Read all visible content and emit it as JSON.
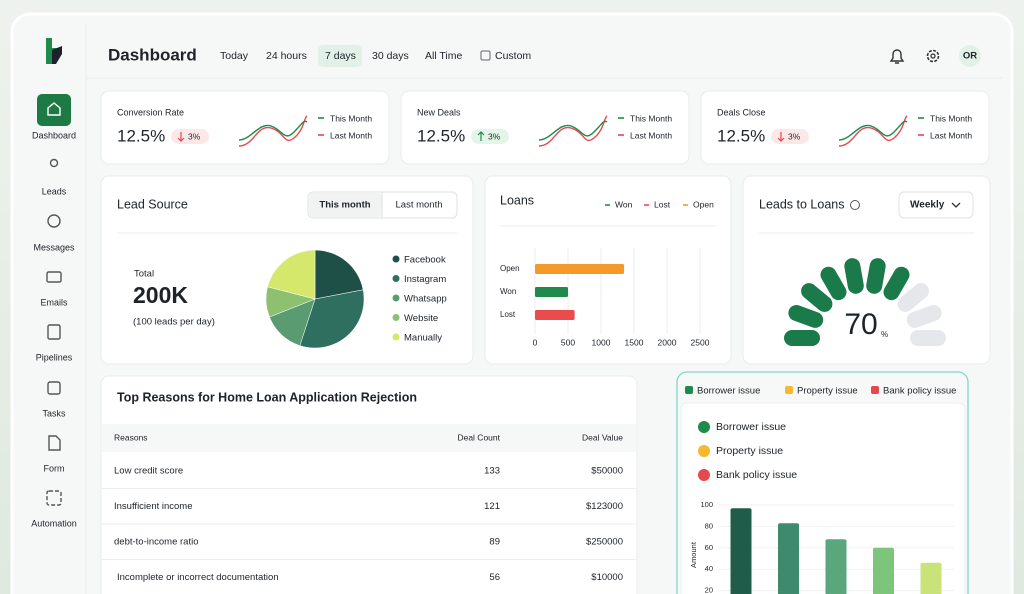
{
  "header": {
    "title": "Dashboard",
    "ranges": [
      "Today",
      "24 hours",
      "7 days",
      "30 days",
      "All Time",
      "Custom"
    ],
    "avatar": "OR"
  },
  "sidebar": [
    "Dashboard",
    "Leads",
    "Messages",
    "Emails",
    "Pipelines",
    "Tasks",
    "Form",
    "Automation"
  ],
  "kpis": {
    "legend": [
      "This Month",
      "Last Month"
    ],
    "cards": [
      {
        "title": "Conversion Rate",
        "value": "12.5%",
        "change": "3%",
        "trend": "down"
      },
      {
        "title": "New Deals",
        "value": "12.5%",
        "change": "3%",
        "trend": "up"
      },
      {
        "title": "Deals Close",
        "value": "12.5%",
        "change": "3%",
        "trend": "down"
      }
    ]
  },
  "lead_source": {
    "title": "Lead Source",
    "tabs": [
      "This month",
      "Last month"
    ],
    "total_label": "Total",
    "total": "200K",
    "note": "(100 leads per day)",
    "chart_data": {
      "type": "pie",
      "categories": [
        "Facebook",
        "Instagram",
        "Whatsapp",
        "Website",
        "Manually"
      ],
      "values": [
        22,
        33,
        14,
        10,
        21
      ],
      "colors": [
        "#1f5048",
        "#2f6f5f",
        "#5b9b72",
        "#8dc170",
        "#d5e86c"
      ]
    }
  },
  "loans": {
    "chart_data": {
      "type": "bar",
      "orientation": "horizontal",
      "title": "Loans",
      "categories": [
        "Open",
        "Won",
        "Lost"
      ],
      "values": [
        1350,
        500,
        600
      ],
      "colors": [
        "#f39a2b",
        "#1e8a4c",
        "#ea4b4b"
      ],
      "legend": [
        {
          "name": "Won",
          "color": "#1e8a4c"
        },
        {
          "name": "Lost",
          "color": "#ea4b4b"
        },
        {
          "name": "Open",
          "color": "#f39a2b"
        }
      ],
      "xlim": [
        0,
        2500
      ],
      "xticks": [
        0,
        500,
        1000,
        1500,
        2000,
        2500
      ],
      "grid": true
    }
  },
  "leads_to_loans": {
    "title": "Leads to Loans",
    "period": "Weekly",
    "chart_data": {
      "type": "gauge",
      "value": 70,
      "unit": "%",
      "range": [
        0,
        100
      ],
      "segments": 10,
      "color": "#1a7a4a"
    }
  },
  "rejections": {
    "title": "Top Reasons for Home Loan Application Rejection",
    "columns": [
      "Reasons",
      "Deal Count",
      "Deal Value"
    ],
    "rows": [
      [
        "Low credit score",
        "133",
        "$50000"
      ],
      [
        "Insufficient income",
        "121",
        "$123000"
      ],
      [
        "debt-to-income ratio",
        "89",
        "$250000"
      ],
      [
        "Incomplete or incorrect documentation",
        "56",
        "$10000"
      ]
    ]
  },
  "issues": {
    "tabs": [
      "Borrower issue",
      "Property issue",
      "Bank policy issue"
    ],
    "list": [
      "Borrower issue",
      "Property issue",
      "Bank policy issue"
    ],
    "chart_data": {
      "type": "bar",
      "categories": [
        null,
        null,
        null,
        null,
        null
      ],
      "values": [
        97,
        83,
        68,
        60,
        46
      ],
      "colors": [
        "#1f5c4a",
        "#3d8a6e",
        "#5aa77e",
        "#7cc57a",
        "#c9e27a"
      ],
      "ylabel": "Amount",
      "ylim": [
        0,
        100
      ],
      "yticks": [
        0,
        20,
        40,
        60,
        80,
        100
      ]
    }
  }
}
